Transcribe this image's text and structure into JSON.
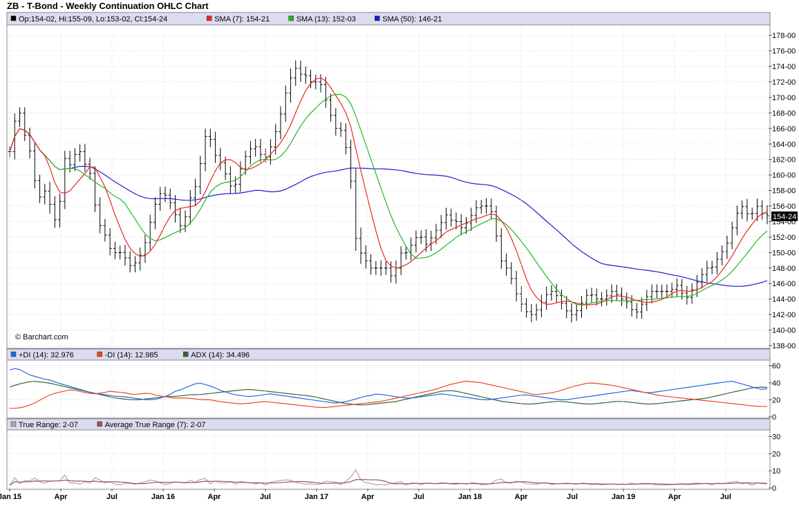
{
  "title": "ZB - T-Bond - Weekly Continuation OHLC Chart",
  "watermark": "© Barchart.com",
  "last_price_label": "154-24",
  "colors": {
    "panel_header": "#dcdcf0",
    "grid": "#d8d8d8",
    "price_bars": "#000000",
    "sma7": "#e8261c",
    "sma13": "#21b621",
    "sma50": "#1c1ccc",
    "plus_di": "#2266dd",
    "minus_di": "#ee4422",
    "adx": "#336633",
    "true_range": "#aaaaaa",
    "atr": "#995555"
  },
  "x_ticks": [
    "Jan 15",
    "Apr",
    "Jul",
    "Jan 16",
    "Apr",
    "Jul",
    "Jan 17",
    "Apr",
    "Jul",
    "Jan 18",
    "Apr",
    "Jul",
    "Jan 19",
    "Apr",
    "Jul"
  ],
  "chart_data": [
    {
      "type": "ohlc",
      "panel": "price",
      "legend": [
        {
          "key": "ohlc",
          "text": "Op:154-02, Hi:155-09, Lo:153-02, Cl:154-24",
          "color": "#000000"
        },
        {
          "key": "sma7",
          "text": "SMA (7): 154-21",
          "color": "#e8261c"
        },
        {
          "key": "sma13",
          "text": "SMA (13): 152-03",
          "color": "#21b621"
        },
        {
          "key": "sma50",
          "text": "SMA (50): 146-21",
          "color": "#1c1ccc"
        }
      ],
      "y_ticks": [
        "178-00",
        "176-00",
        "174-00",
        "172-00",
        "170-00",
        "168-00",
        "166-00",
        "164-00",
        "162-00",
        "160-00",
        "158-00",
        "156-00",
        "154-00",
        "152-00",
        "150-00",
        "148-00",
        "146-00",
        "144-00",
        "142-00",
        "140-00",
        "138-00"
      ],
      "ylim": [
        138,
        179
      ],
      "close_path": [
        163,
        167,
        168,
        165,
        163,
        159,
        157,
        158,
        156,
        154,
        157,
        163,
        161,
        163,
        163,
        161,
        160,
        155,
        153,
        152,
        150,
        150,
        150,
        149,
        148,
        149,
        150,
        152,
        155,
        157,
        158,
        157,
        156,
        154,
        153,
        156,
        158,
        159,
        164,
        166,
        163,
        162,
        161,
        159,
        158,
        160,
        162,
        163,
        164,
        163,
        162,
        163,
        165,
        167,
        170,
        172,
        174,
        173,
        173,
        172,
        172,
        172,
        170,
        168,
        166,
        166,
        164,
        160,
        152,
        150,
        149,
        148,
        148,
        148,
        148,
        147,
        148,
        150,
        150,
        151,
        152,
        152,
        151,
        152,
        153,
        154,
        155,
        154,
        154,
        153,
        154,
        155,
        156,
        156,
        156,
        155,
        151,
        148,
        148,
        146,
        144,
        143,
        142,
        142,
        143,
        144,
        145,
        145,
        144,
        143,
        142,
        142,
        143,
        144,
        145,
        144,
        144,
        144,
        145,
        145,
        144,
        144,
        143,
        142,
        143,
        144,
        145,
        145,
        145,
        145,
        145,
        146,
        145,
        144,
        145,
        146,
        147,
        148,
        148,
        149,
        150,
        151,
        153,
        155,
        156,
        155,
        155,
        156,
        155,
        154.75
      ],
      "range_path": [
        1.5,
        2,
        1.5,
        1.5,
        2,
        2,
        1.5,
        2,
        2.5,
        2,
        2,
        2,
        2,
        1.5,
        2,
        2,
        1.5,
        2,
        2,
        1.5,
        2,
        1.5,
        2,
        2,
        1.5,
        2,
        2,
        2,
        2,
        1.5,
        2,
        1.5,
        2,
        2,
        1.5,
        2,
        2,
        2,
        2,
        2,
        2,
        2,
        1.5,
        2,
        2,
        2,
        1.5,
        2,
        2,
        2,
        1.5,
        2,
        2,
        2,
        2,
        2.5,
        2,
        2,
        2,
        1.5,
        2,
        2,
        2,
        1.5,
        2,
        1.5,
        2,
        2,
        4,
        2,
        2,
        1.5,
        2,
        2,
        1.5,
        2,
        2,
        1.5,
        2,
        2,
        1.5,
        2,
        2,
        1.5,
        2,
        2,
        1.5,
        2,
        2,
        1.5,
        2,
        2,
        1.5,
        2,
        2,
        1.5,
        2,
        2,
        1.5,
        2,
        2,
        1.5,
        2,
        1.5,
        2,
        2,
        1.5,
        2,
        1.5,
        2,
        2,
        1.5,
        2,
        1.5,
        2,
        1.5,
        2,
        1.5,
        2,
        1.5,
        2,
        1.5,
        2,
        1.5,
        2,
        1.5,
        2,
        1.5,
        2,
        1.5,
        2,
        1.5,
        2,
        1.5,
        2,
        1.5,
        2,
        1.5,
        2,
        1.5,
        2,
        1.5,
        2,
        1.5,
        2,
        1.5,
        2,
        1.5,
        2.2
      ]
    },
    {
      "type": "line",
      "panel": "dmi",
      "legend": [
        {
          "key": "plus_di",
          "text": "+DI (14): 32.976",
          "color": "#2266dd"
        },
        {
          "key": "minus_di",
          "text": "-DI (14): 12.985",
          "color": "#ee4422"
        },
        {
          "key": "adx",
          "text": "ADX (14): 34.496",
          "color": "#336633"
        }
      ],
      "y_ticks": [
        "60",
        "40",
        "20",
        "0"
      ],
      "ylim": [
        0,
        65
      ],
      "plus_di_path": [
        55,
        57,
        55,
        50,
        48,
        46,
        44,
        43,
        40,
        38,
        36,
        34,
        32,
        30,
        28,
        27,
        26,
        25,
        24,
        24,
        23,
        22,
        21,
        20,
        20,
        21,
        23,
        26,
        30,
        32,
        35,
        38,
        40,
        38,
        36,
        33,
        30,
        28,
        26,
        25,
        24,
        24,
        25,
        26,
        27,
        26,
        25,
        24,
        23,
        22,
        21,
        20,
        19,
        18,
        17,
        16,
        17,
        18,
        20,
        22,
        24,
        25,
        27,
        26,
        25,
        24,
        23,
        22,
        22,
        23,
        24,
        25,
        26,
        27,
        26,
        25,
        24,
        23,
        22,
        21,
        20,
        20,
        21,
        22,
        23,
        24,
        25,
        26,
        25,
        24,
        23,
        22,
        21,
        20,
        20,
        21,
        22,
        23,
        24,
        25,
        26,
        27,
        28,
        29,
        30,
        31,
        30,
        29,
        28,
        29,
        30,
        31,
        32,
        33,
        34,
        35,
        36,
        37,
        38,
        39,
        40,
        41,
        42,
        40,
        38,
        36,
        34,
        32,
        33
      ],
      "minus_di_path": [
        10,
        10,
        12,
        15,
        20,
        25,
        28,
        30,
        32,
        30,
        28,
        27,
        28,
        30,
        29,
        28,
        26,
        27,
        28,
        25,
        24,
        22,
        22,
        22,
        21,
        20,
        20,
        18,
        17,
        16,
        15,
        16,
        17,
        18,
        17,
        16,
        15,
        14,
        13,
        12,
        11,
        11,
        12,
        13,
        14,
        15,
        16,
        17,
        18,
        20,
        22,
        24,
        26,
        28,
        30,
        32,
        35,
        38,
        40,
        42,
        41,
        40,
        38,
        36,
        34,
        32,
        30,
        28,
        26,
        27,
        28,
        30,
        33,
        36,
        38,
        40,
        39,
        38,
        37,
        35,
        33,
        31,
        29,
        27,
        25,
        24,
        23,
        22,
        21,
        20,
        19,
        18,
        17,
        16,
        15,
        14,
        13,
        12,
        12
      ],
      "adx_path": [
        35,
        38,
        40,
        42,
        41,
        40,
        38,
        36,
        34,
        32,
        30,
        28,
        26,
        24,
        22,
        21,
        20,
        20,
        21,
        22,
        23,
        24,
        24,
        25,
        26,
        26,
        27,
        28,
        29,
        30,
        31,
        32,
        32,
        31,
        30,
        29,
        28,
        27,
        26,
        25,
        24,
        22,
        20,
        18,
        16,
        15,
        14,
        14,
        15,
        16,
        17,
        18,
        20,
        22,
        24,
        26,
        28,
        30,
        31,
        30,
        28,
        26,
        24,
        22,
        20,
        18,
        17,
        16,
        15,
        15,
        16,
        17,
        18,
        18,
        17,
        16,
        15,
        15,
        16,
        17,
        18,
        18,
        17,
        16,
        15,
        15,
        16,
        17,
        18,
        19,
        20,
        21,
        22,
        24,
        26,
        28,
        30,
        32,
        34,
        35,
        34.5
      ]
    },
    {
      "type": "line",
      "panel": "true_range",
      "legend": [
        {
          "key": "true_range",
          "text": "True Range: 2-07",
          "color": "#aaaaaa"
        },
        {
          "key": "atr",
          "text": "Average True Range (7): 2-07",
          "color": "#995555"
        }
      ],
      "y_ticks": [
        "30",
        "20",
        "10",
        "0"
      ],
      "ylim": [
        0,
        33
      ]
    }
  ]
}
